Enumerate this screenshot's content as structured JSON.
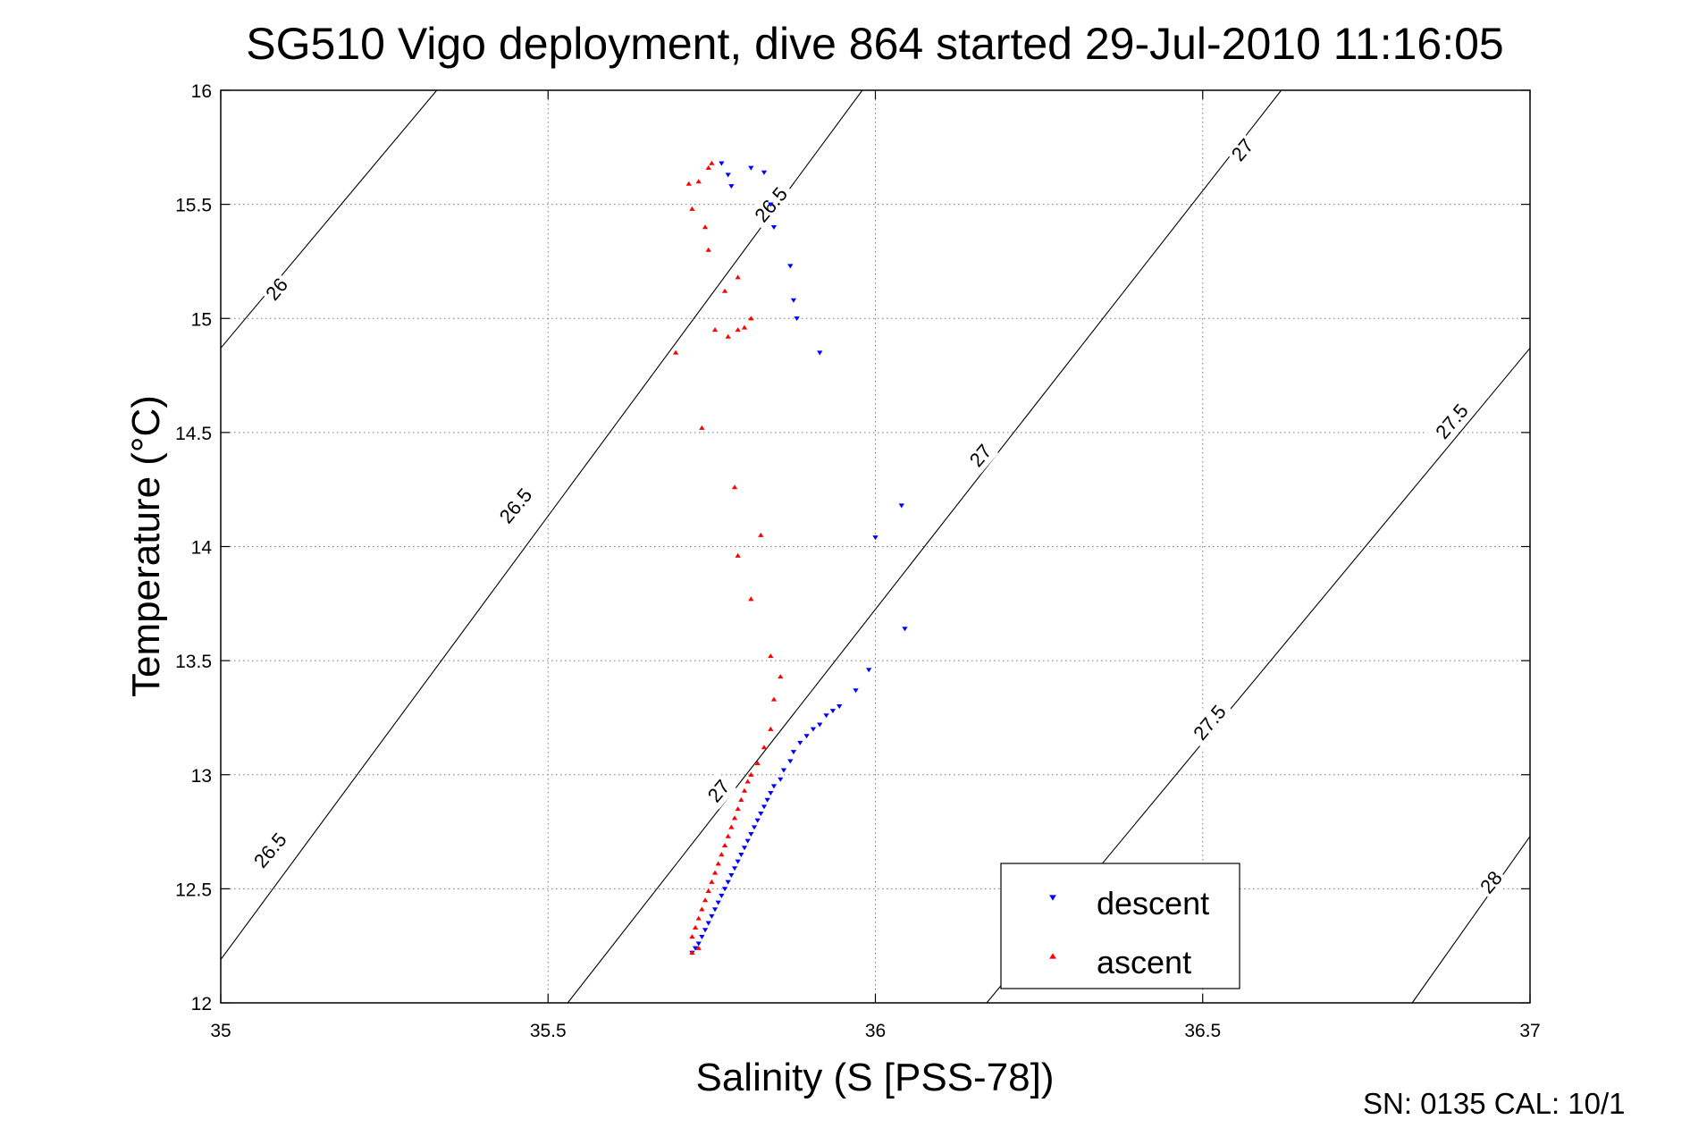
{
  "chart_data": {
    "type": "scatter",
    "title": "SG510 Vigo deployment, dive 864 started 29-Jul-2010 11:16:05",
    "xlabel": "Salinity (S [PSS-78])",
    "ylabel": "Temperature (°C)",
    "xlim": [
      35,
      37
    ],
    "ylim": [
      12,
      16
    ],
    "x_ticks": [
      "35",
      "35.5",
      "36",
      "36.5",
      "37"
    ],
    "y_ticks": [
      "12",
      "12.5",
      "13",
      "13.5",
      "14",
      "14.5",
      "15",
      "15.5",
      "16"
    ],
    "grid": true,
    "legend_placement": "bottom-right",
    "density_contours": [
      {
        "label": "26",
        "points": [
          [
            35.0,
            14.87
          ],
          [
            35.33,
            16.0
          ]
        ]
      },
      {
        "label": "26.5",
        "points": [
          [
            35.0,
            12.19
          ],
          [
            35.98,
            16.0
          ]
        ]
      },
      {
        "label": "27",
        "points": [
          [
            35.53,
            12.0
          ],
          [
            36.62,
            16.0
          ]
        ]
      },
      {
        "label": "27.5",
        "points": [
          [
            36.17,
            12.0
          ],
          [
            37.0,
            14.87
          ]
        ]
      },
      {
        "label": "28",
        "points": [
          [
            36.82,
            12.0
          ],
          [
            37.0,
            12.73
          ]
        ]
      }
    ],
    "contour_labels": [
      {
        "text": "26",
        "x": 35.085,
        "y": 15.13,
        "angle": -50
      },
      {
        "text": "26.5",
        "x": 35.45,
        "y": 14.18,
        "angle": -50
      },
      {
        "text": "26.5",
        "x": 35.075,
        "y": 12.67,
        "angle": -50
      },
      {
        "text": "26.5",
        "x": 35.84,
        "y": 15.5,
        "angle": -50
      },
      {
        "text": "27",
        "x": 35.76,
        "y": 12.93,
        "angle": -50
      },
      {
        "text": "27",
        "x": 36.16,
        "y": 14.4,
        "angle": -50
      },
      {
        "text": "27",
        "x": 36.56,
        "y": 15.74,
        "angle": -50
      },
      {
        "text": "27.5",
        "x": 36.51,
        "y": 13.23,
        "angle": -50
      },
      {
        "text": "27.5",
        "x": 36.88,
        "y": 14.55,
        "angle": -50
      },
      {
        "text": "28",
        "x": 36.94,
        "y": 12.53,
        "angle": -50
      }
    ],
    "series": [
      {
        "name": "descent",
        "color": "#0000ff",
        "marker": "triangle-down",
        "x": [
          35.765,
          35.775,
          35.78,
          35.81,
          35.83,
          35.84,
          35.845,
          35.87,
          35.875,
          35.88,
          35.915,
          35.99,
          35.97,
          35.945,
          35.935,
          35.925,
          35.915,
          35.905,
          35.895,
          35.885,
          35.875,
          35.87,
          35.86,
          35.855,
          35.845,
          35.84,
          35.835,
          35.83,
          35.825,
          35.82,
          35.815,
          35.81,
          35.805,
          35.8,
          35.795,
          35.79,
          35.785,
          35.78,
          35.775,
          35.77,
          35.765,
          35.76,
          35.755,
          35.75,
          35.745,
          35.74,
          35.735,
          35.73,
          35.725,
          35.72,
          36.04,
          36.0,
          36.045
        ],
        "y": [
          15.68,
          15.63,
          15.58,
          15.66,
          15.64,
          15.5,
          15.4,
          15.23,
          15.08,
          15.0,
          14.85,
          13.46,
          13.37,
          13.3,
          13.28,
          13.26,
          13.22,
          13.2,
          13.17,
          13.14,
          13.1,
          13.06,
          13.02,
          12.98,
          12.95,
          12.92,
          12.89,
          12.86,
          12.83,
          12.8,
          12.77,
          12.74,
          12.71,
          12.68,
          12.65,
          12.62,
          12.59,
          12.56,
          12.53,
          12.5,
          12.47,
          12.44,
          12.41,
          12.38,
          12.35,
          12.32,
          12.29,
          12.26,
          12.24,
          12.22,
          14.18,
          14.04,
          13.64
        ]
      },
      {
        "name": "ascent",
        "color": "#ff0000",
        "marker": "triangle-up",
        "x": [
          35.75,
          35.745,
          35.73,
          35.715,
          35.72,
          35.74,
          35.745,
          35.77,
          35.79,
          35.81,
          35.8,
          35.79,
          35.775,
          35.755,
          35.695,
          35.735,
          35.785,
          35.825,
          35.79,
          35.81,
          35.84,
          35.855,
          35.845,
          35.84,
          35.83,
          35.82,
          35.81,
          35.805,
          35.8,
          35.795,
          35.79,
          35.785,
          35.78,
          35.775,
          35.77,
          35.765,
          35.76,
          35.755,
          35.75,
          35.745,
          35.74,
          35.735,
          35.73,
          35.725,
          35.72,
          35.72,
          35.73
        ],
        "y": [
          15.68,
          15.66,
          15.6,
          15.59,
          15.48,
          15.4,
          15.3,
          15.12,
          15.18,
          15.0,
          14.96,
          14.95,
          14.92,
          14.95,
          14.85,
          14.52,
          14.26,
          14.05,
          13.96,
          13.77,
          13.52,
          13.43,
          13.33,
          13.2,
          13.12,
          13.05,
          13.0,
          12.97,
          12.93,
          12.89,
          12.85,
          12.81,
          12.77,
          12.73,
          12.69,
          12.65,
          12.61,
          12.57,
          12.53,
          12.49,
          12.45,
          12.41,
          12.37,
          12.33,
          12.29,
          12.22,
          12.24
        ]
      }
    ]
  },
  "footer": {
    "text": "SN: 0135  CAL: 10/1"
  }
}
